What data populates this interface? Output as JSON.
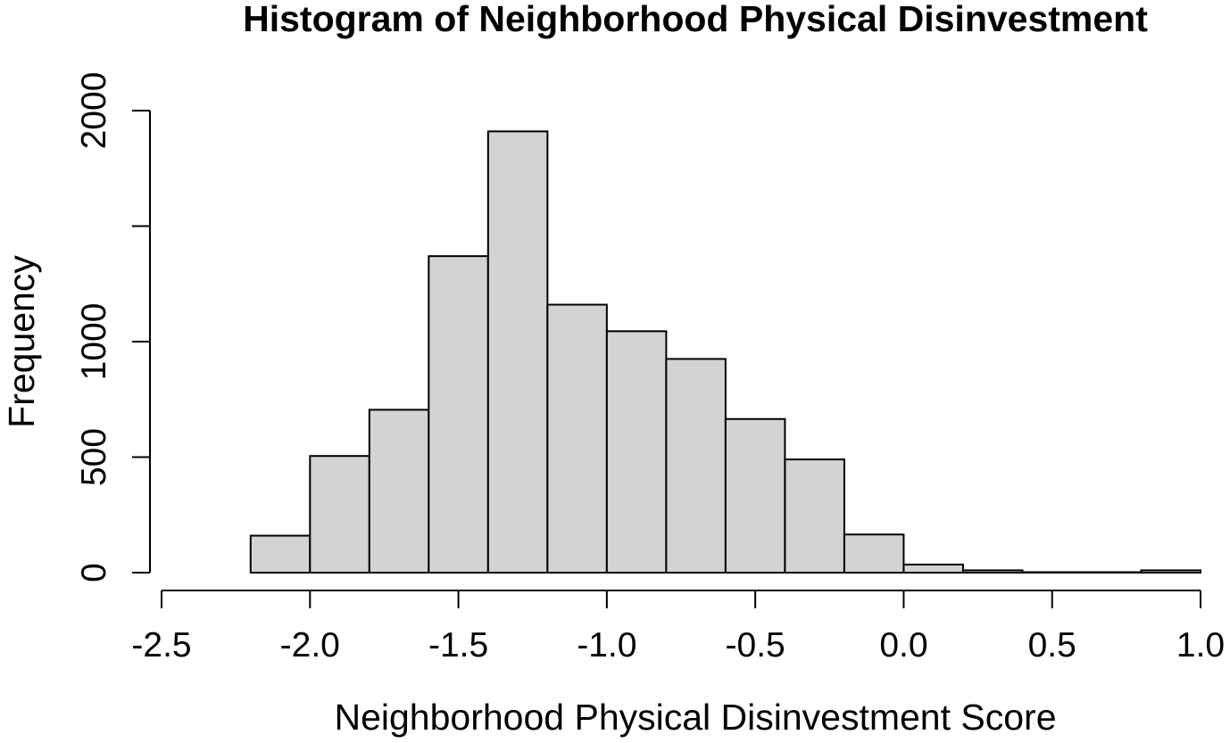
{
  "chart_data": {
    "type": "bar",
    "histogram": true,
    "title": "Histogram of Neighborhood Physical Disinvestment",
    "xlabel": "Neighborhood Physical Disinvestment Score",
    "ylabel": "Frequency",
    "bin_edges": [
      -2.2,
      -2.0,
      -1.8,
      -1.6,
      -1.4,
      -1.2,
      -1.0,
      -0.8,
      -0.6,
      -0.4,
      -0.2,
      0.0,
      0.2,
      0.4,
      0.6,
      0.8,
      1.0
    ],
    "values": [
      160,
      505,
      705,
      1370,
      1910,
      1160,
      1045,
      925,
      665,
      490,
      165,
      35,
      10,
      2,
      2,
      10
    ],
    "xlim": [
      -2.5,
      1.0
    ],
    "ylim": [
      0,
      2000
    ],
    "x_ticks": [
      -2.5,
      -2.0,
      -1.5,
      -1.0,
      -0.5,
      0.0,
      0.5,
      1.0
    ],
    "x_tick_labels": [
      "-2.5",
      "-2.0",
      "-1.5",
      "-1.0",
      "-0.5",
      "0.0",
      "0.5",
      "1.0"
    ],
    "y_ticks": [
      0,
      500,
      1000,
      1500,
      2000
    ],
    "y_tick_labels": [
      "0",
      "500",
      "1000",
      "",
      "2000"
    ],
    "bar_fill": "#d3d3d3",
    "bar_stroke": "#000000",
    "grid": false
  }
}
